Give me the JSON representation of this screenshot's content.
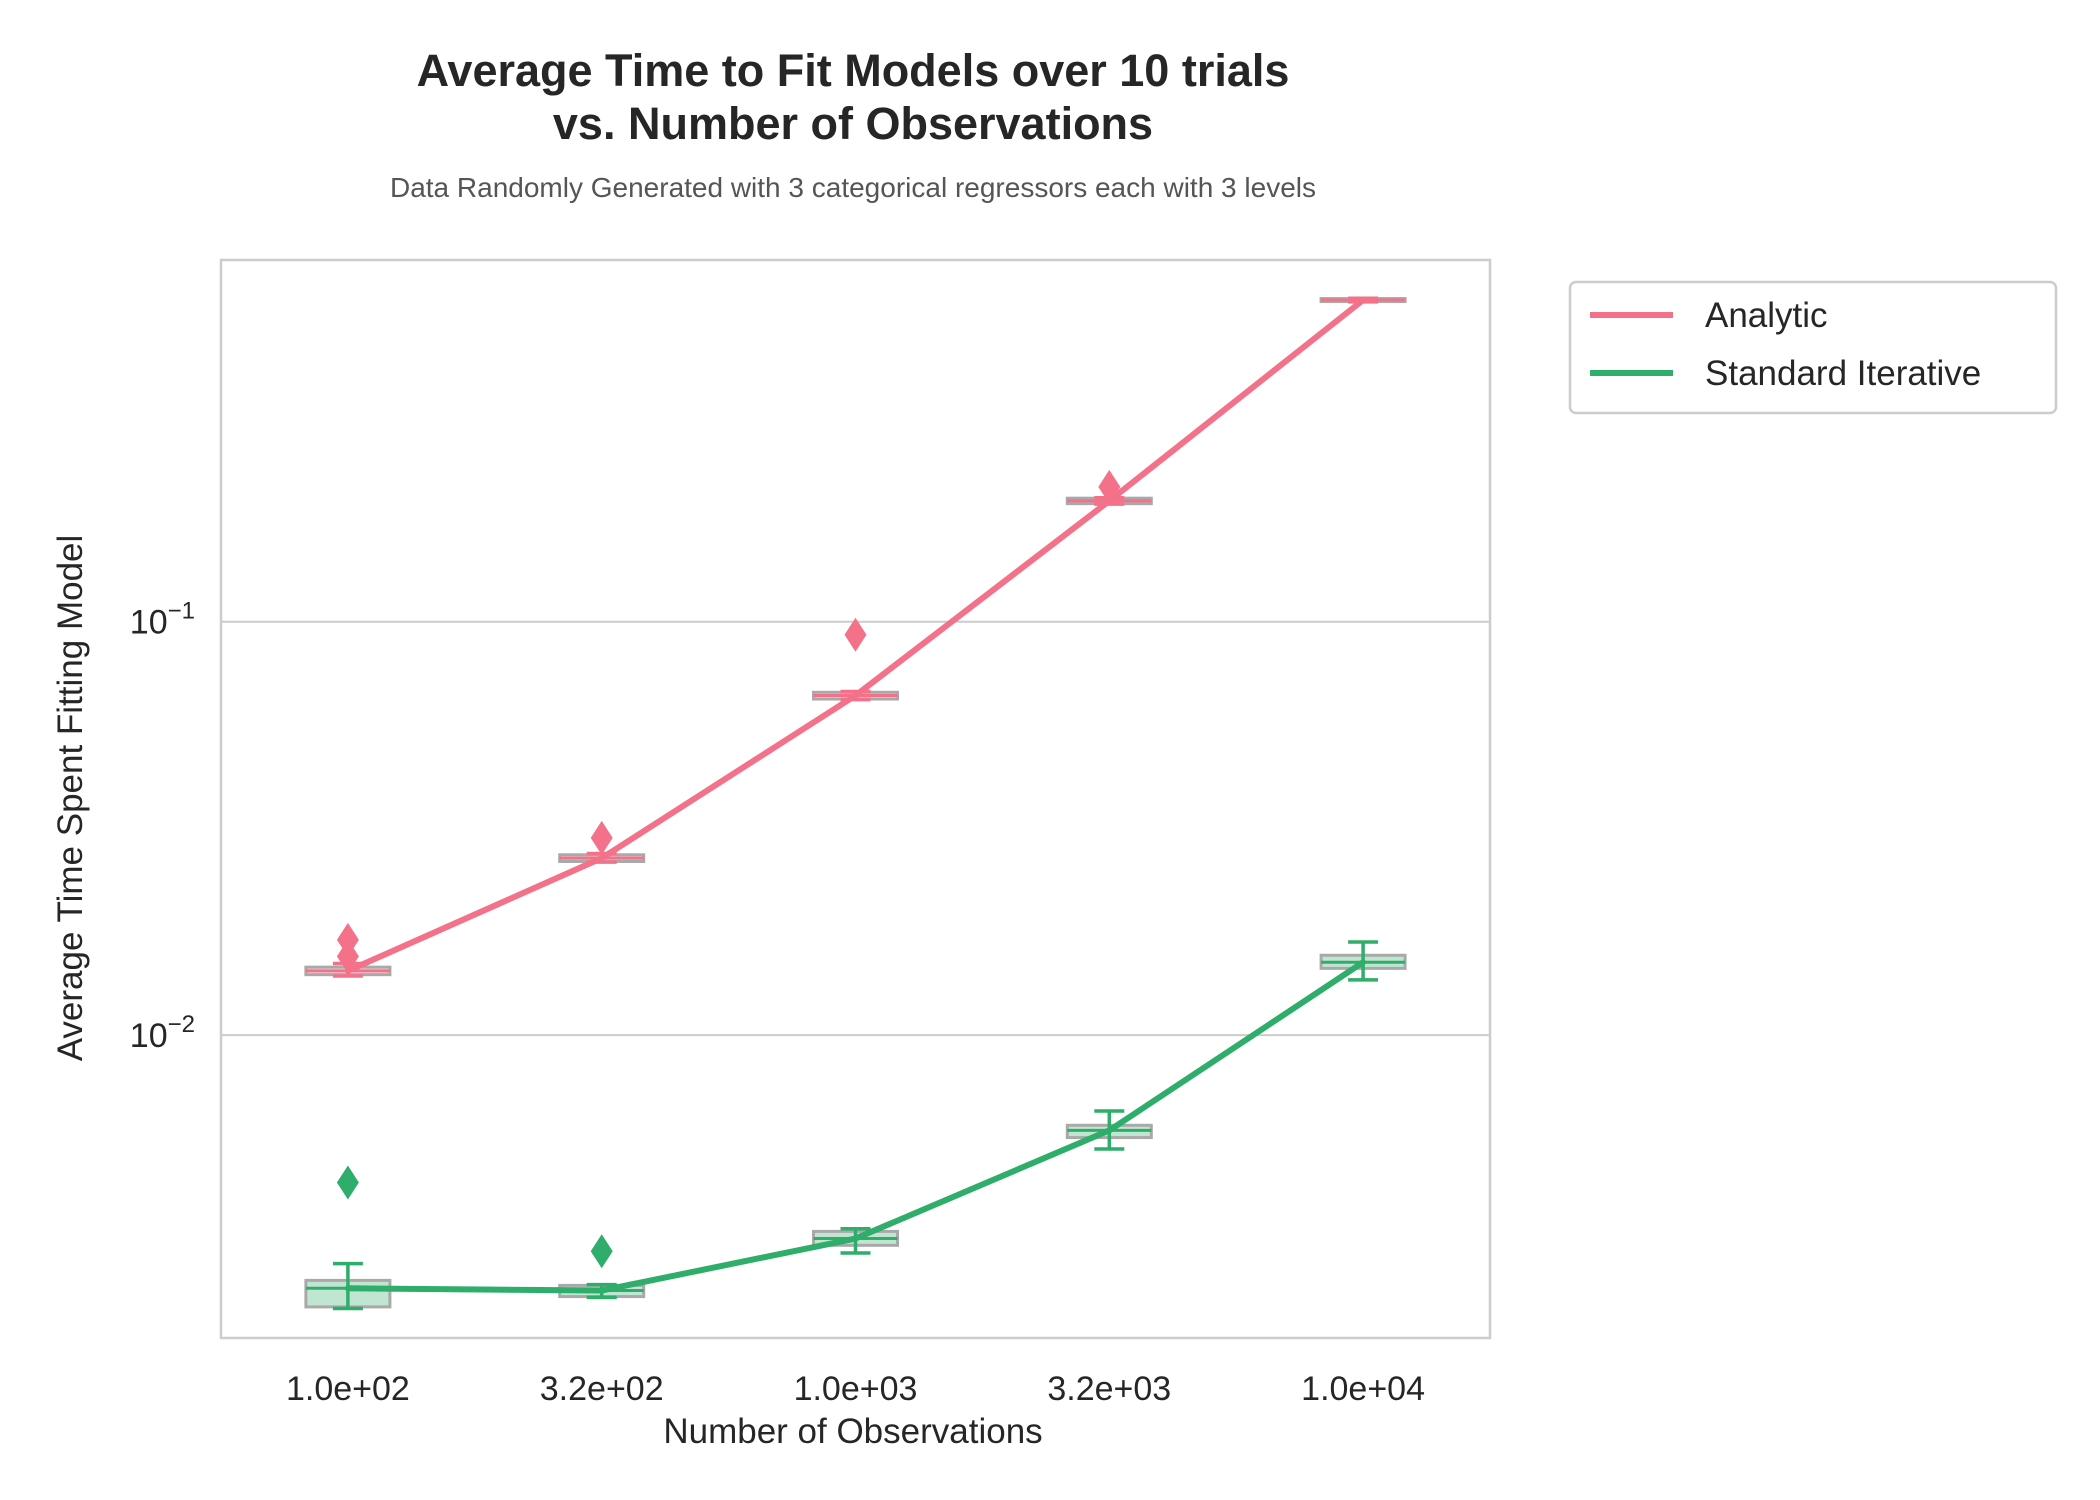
{
  "chart_data": {
    "type": "line",
    "title_lines": [
      "Average Time to Fit Models over 10 trials",
      "vs. Number of Observations"
    ],
    "subtitle": "Data Randomly Generated with 3 categorical regressors each with 3 levels",
    "xlabel": "Number of Observations",
    "ylabel": "Average Time Spent Fitting Model",
    "categories": [
      "1.0e+02",
      "3.2e+02",
      "1.0e+03",
      "3.2e+03",
      "1.0e+04"
    ],
    "yscale": "log",
    "ylim": [
      0.00185,
      0.75
    ],
    "yticks": [
      {
        "value": 0.1,
        "base": "10",
        "exp": "−1"
      },
      {
        "value": 0.01,
        "base": "10",
        "exp": "−2"
      }
    ],
    "grid": "horizontal",
    "legend_position": "outside-top-right",
    "series": [
      {
        "name": "Analytic",
        "color": "#f3728a",
        "values": [
          0.0143,
          0.0268,
          0.0663,
          0.196,
          0.6
        ],
        "boxes": [
          {
            "q1": 0.014,
            "q3": 0.0146,
            "whisker_low": 0.0139,
            "whisker_high": 0.0149
          },
          {
            "q1": 0.0263,
            "q3": 0.0273,
            "whisker_low": 0.0262,
            "whisker_high": 0.0275
          },
          {
            "q1": 0.065,
            "q3": 0.0675,
            "whisker_low": 0.0648,
            "whisker_high": 0.0678
          },
          {
            "q1": 0.193,
            "q3": 0.199,
            "whisker_low": 0.1925,
            "whisker_high": 0.1995
          },
          {
            "q1": 0.595,
            "q3": 0.605,
            "whisker_low": 0.594,
            "whisker_high": 0.606
          }
        ],
        "outliers": [
          [
            0,
            0.0155
          ],
          [
            0,
            0.017
          ],
          [
            1,
            0.03
          ],
          [
            2,
            0.093
          ],
          [
            3,
            0.212
          ]
        ]
      },
      {
        "name": "Standard Iterative",
        "color": "#2fad6a",
        "values": [
          0.00244,
          0.00241,
          0.00322,
          0.00588,
          0.015
        ],
        "boxes": [
          {
            "q1": 0.0022,
            "q3": 0.00255,
            "whisker_low": 0.00218,
            "whisker_high": 0.0028
          },
          {
            "q1": 0.00233,
            "q3": 0.00248,
            "whisker_low": 0.00232,
            "whisker_high": 0.00249
          },
          {
            "q1": 0.0031,
            "q3": 0.00335,
            "whisker_low": 0.00297,
            "whisker_high": 0.0034
          },
          {
            "q1": 0.00565,
            "q3": 0.00605,
            "whisker_low": 0.0053,
            "whisker_high": 0.00655
          },
          {
            "q1": 0.0145,
            "q3": 0.0156,
            "whisker_low": 0.0136,
            "whisker_high": 0.0168
          }
        ],
        "outliers": [
          [
            0,
            0.0044
          ],
          [
            1,
            0.003
          ]
        ]
      }
    ],
    "box_color": "#a9a9a9"
  }
}
